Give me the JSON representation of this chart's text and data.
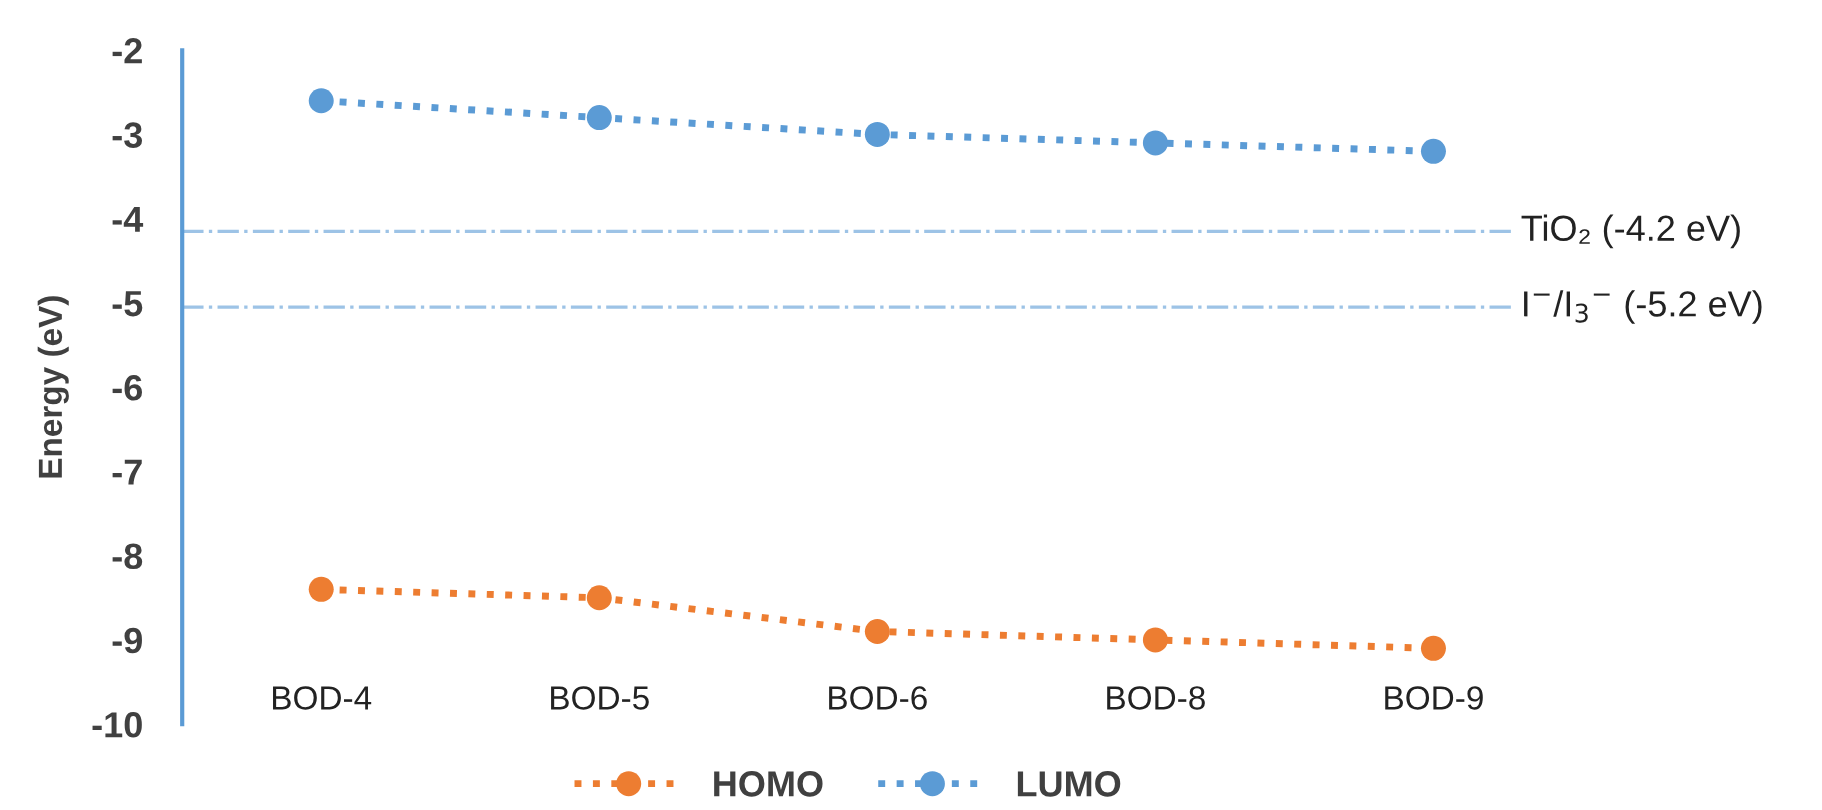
{
  "chart_data": {
    "type": "line",
    "ylabel": "Energy (eV)",
    "categories": [
      "BOD-4",
      "BOD-5",
      "BOD-6",
      "BOD-8",
      "BOD-9"
    ],
    "series": [
      {
        "name": "HOMO",
        "color": "#ed7d31",
        "values": [
          -8.4,
          -8.5,
          -8.9,
          -9.0,
          -9.1
        ]
      },
      {
        "name": "LUMO",
        "color": "#5b9bd5",
        "values": [
          -2.6,
          -2.8,
          -3.0,
          -3.1,
          -3.2
        ]
      }
    ],
    "ylim": [
      -10,
      -2
    ],
    "yticks": [
      -10,
      -9,
      -8,
      -7,
      -6,
      -5,
      -4,
      -3,
      -2
    ],
    "ref_lines": [
      {
        "axis": "y",
        "value": -4.15,
        "label": "TiO₂ (-4.2 eV)",
        "color": "#9dc3e6",
        "line_style": "dashdot"
      },
      {
        "axis": "y",
        "value": -5.05,
        "label": "I$^{−}$/I$_{3}$$^{−}$ (-5.2 eV)",
        "color": "#9dc3e6",
        "line_style": "dashdot"
      }
    ],
    "grid": false,
    "legend": "bottom",
    "marker": "circle",
    "line_style": "dotted"
  }
}
